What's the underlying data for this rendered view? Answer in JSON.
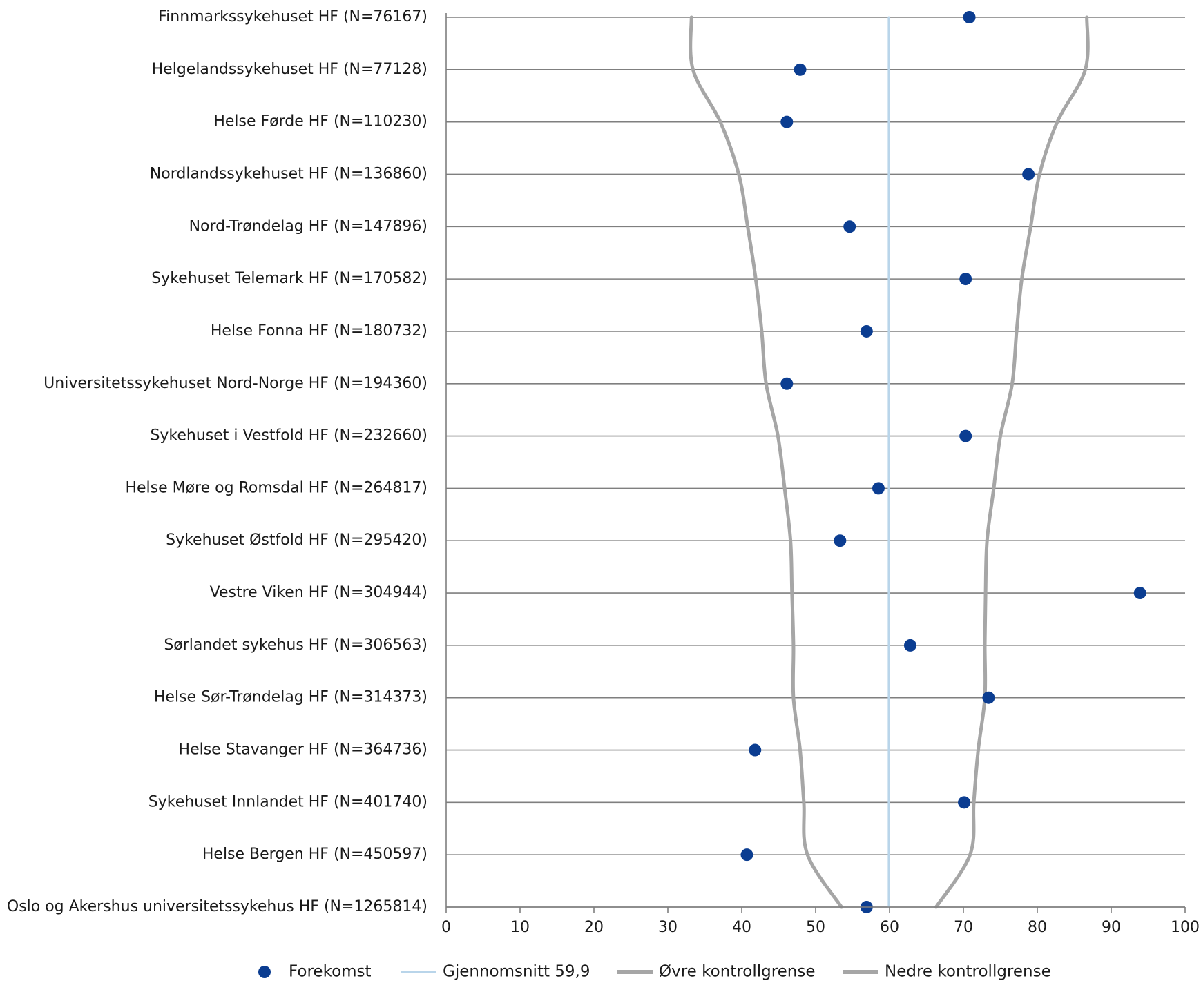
{
  "chart_data": {
    "type": "scatter",
    "orientation": "horizontal-categories",
    "categories": [
      "Finnmarkssykehuset HF (N=76167)",
      "Helgelandssykehuset HF (N=77128)",
      "Helse Førde HF (N=110230)",
      "Nordlandssykehuset HF (N=136860)",
      "Nord-Trøndelag HF (N=147896)",
      "Sykehuset Telemark HF (N=170582)",
      "Helse Fonna HF (N=180732)",
      "Universitetssykehuset Nord-Norge HF (N=194360)",
      "Sykehuset i Vestfold HF (N=232660)",
      "Helse Møre og Romsdal HF (N=264817)",
      "Sykehuset Østfold HF (N=295420)",
      "Vestre Viken HF (N=304944)",
      "Sørlandet sykehus HF (N=306563)",
      "Helse Sør-Trøndelag HF (N=314373)",
      "Helse Stavanger HF (N=364736)",
      "Sykehuset Innlandet HF (N=401740)",
      "Helse Bergen HF (N=450597)",
      "Oslo og Akershus universitetssykehus HF (N=1265814)"
    ],
    "series": [
      {
        "name": "Forekomst",
        "values": [
          70.8,
          47.9,
          46.1,
          78.8,
          54.6,
          70.3,
          56.9,
          46.1,
          70.3,
          58.5,
          53.3,
          93.9,
          62.8,
          73.4,
          41.8,
          70.1,
          40.7,
          56.9
        ],
        "color": "#0b3d91",
        "style": "marker"
      },
      {
        "name": "Gjennomsnitt 59,9",
        "values": [
          59.9,
          59.9,
          59.9,
          59.9,
          59.9,
          59.9,
          59.9,
          59.9,
          59.9,
          59.9,
          59.9,
          59.9,
          59.9,
          59.9,
          59.9,
          59.9,
          59.9,
          59.9
        ],
        "color": "#b9d5ea",
        "style": "line"
      },
      {
        "name": "Øvre kontrollgrense",
        "values": [
          86.7,
          86.5,
          82.7,
          80.3,
          79.1,
          77.9,
          77.2,
          76.6,
          75.0,
          74.1,
          73.2,
          73.0,
          72.9,
          72.9,
          72.0,
          71.4,
          70.9,
          66.3
        ],
        "color": "#a6a6a6",
        "style": "line"
      },
      {
        "name": "Nedre kontrollgrense",
        "values": [
          33.2,
          33.4,
          37.1,
          39.6,
          40.8,
          41.9,
          42.7,
          43.3,
          44.9,
          45.8,
          46.6,
          46.8,
          47.0,
          47.0,
          47.9,
          48.4,
          48.9,
          53.5
        ],
        "color": "#a6a6a6",
        "style": "line"
      }
    ],
    "xlim": [
      0,
      100
    ],
    "x_ticks": [
      "0",
      "10",
      "20",
      "30",
      "40",
      "50",
      "60",
      "70",
      "80",
      "90",
      "100"
    ],
    "grid": "horizontal lines at each category",
    "legend_position": "bottom"
  }
}
